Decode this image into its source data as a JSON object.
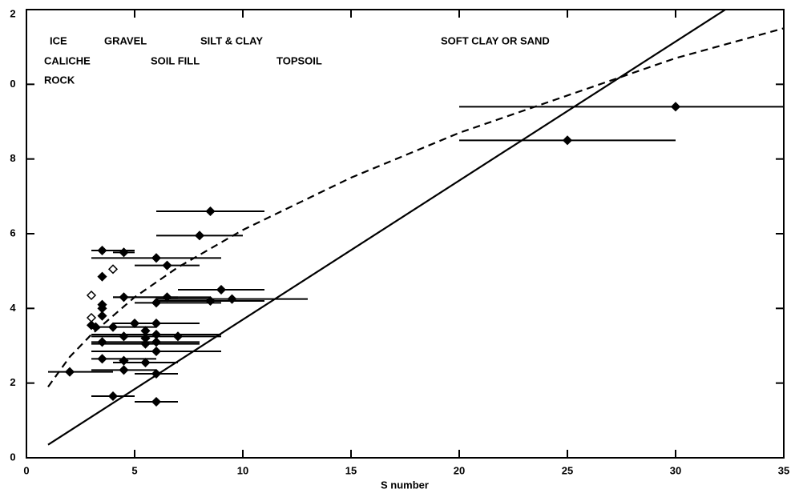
{
  "chart_data": {
    "type": "scatter",
    "xlabel": "S number",
    "xlim": [
      0,
      35
    ],
    "xticks": [
      0,
      5,
      10,
      15,
      20,
      25,
      30,
      35
    ],
    "ylim": [
      0,
      12
    ],
    "yticks": [
      0,
      2,
      4,
      6,
      8,
      {
        "value": 10,
        "label": "0"
      },
      {
        "value": 12,
        "label": "2"
      }
    ],
    "annotations": [
      "ICE",
      "GRAVEL",
      "SILT & CLAY",
      "SOFT CLAY OR SAND",
      "CALICHE",
      "SOIL FILL",
      "TOPSOIL",
      "ROCK"
    ],
    "series": [
      {
        "marker": "filled",
        "color": "#000000",
        "x": [
          30,
          25,
          8.5,
          8,
          3.5,
          4.5,
          6,
          6.5,
          3.5,
          9,
          4.5,
          6.5,
          9.5,
          8.5,
          6,
          3.5,
          3.5,
          3.5,
          3,
          3.2,
          5,
          6,
          4,
          5.5,
          6,
          7,
          4.5,
          5.5,
          3.5,
          6,
          5.5,
          6,
          3.5,
          4.5,
          5.5,
          4.5,
          6,
          2,
          4,
          6
        ],
        "values": [
          9.4,
          8.5,
          6.6,
          5.95,
          5.55,
          5.5,
          5.35,
          5.15,
          4.85,
          4.5,
          4.3,
          4.3,
          4.25,
          4.2,
          4.15,
          4.1,
          4.0,
          3.8,
          3.55,
          3.5,
          3.6,
          3.6,
          3.5,
          3.4,
          3.3,
          3.25,
          3.25,
          3.2,
          3.1,
          3.1,
          3.05,
          2.85,
          2.65,
          2.6,
          2.55,
          2.35,
          2.25,
          2.3,
          1.65,
          1.5
        ],
        "xmin": [
          20,
          20,
          6,
          6,
          3,
          4,
          3,
          5,
          null,
          7,
          4,
          4,
          6,
          6,
          5,
          null,
          null,
          null,
          null,
          null,
          null,
          4,
          3,
          null,
          3,
          3,
          null,
          null,
          3,
          null,
          3,
          3,
          3,
          null,
          4,
          3,
          5,
          1,
          3,
          5
        ],
        "xmax": [
          35,
          30,
          11,
          10,
          5,
          5,
          9,
          8,
          null,
          11,
          7,
          8.5,
          13,
          11,
          9,
          null,
          null,
          null,
          null,
          null,
          null,
          8,
          6,
          null,
          9,
          9,
          null,
          null,
          8,
          null,
          8,
          9,
          6,
          null,
          7,
          6,
          7,
          4,
          5,
          7
        ]
      },
      {
        "marker": "open",
        "color": "#000000",
        "x": [
          4,
          3,
          3
        ],
        "values": [
          5.05,
          4.35,
          3.75
        ]
      }
    ],
    "lines": [
      {
        "style": "solid",
        "x": [
          1,
          32.3
        ],
        "y": [
          0.35,
          12
        ]
      },
      {
        "style": "dashed",
        "x": [
          1,
          2,
          3,
          4,
          5,
          7,
          10,
          15,
          20,
          25,
          30,
          35
        ],
        "y": [
          1.9,
          2.7,
          3.3,
          3.8,
          4.3,
          5.1,
          6.1,
          7.5,
          8.7,
          9.7,
          10.7,
          11.5
        ]
      }
    ]
  }
}
